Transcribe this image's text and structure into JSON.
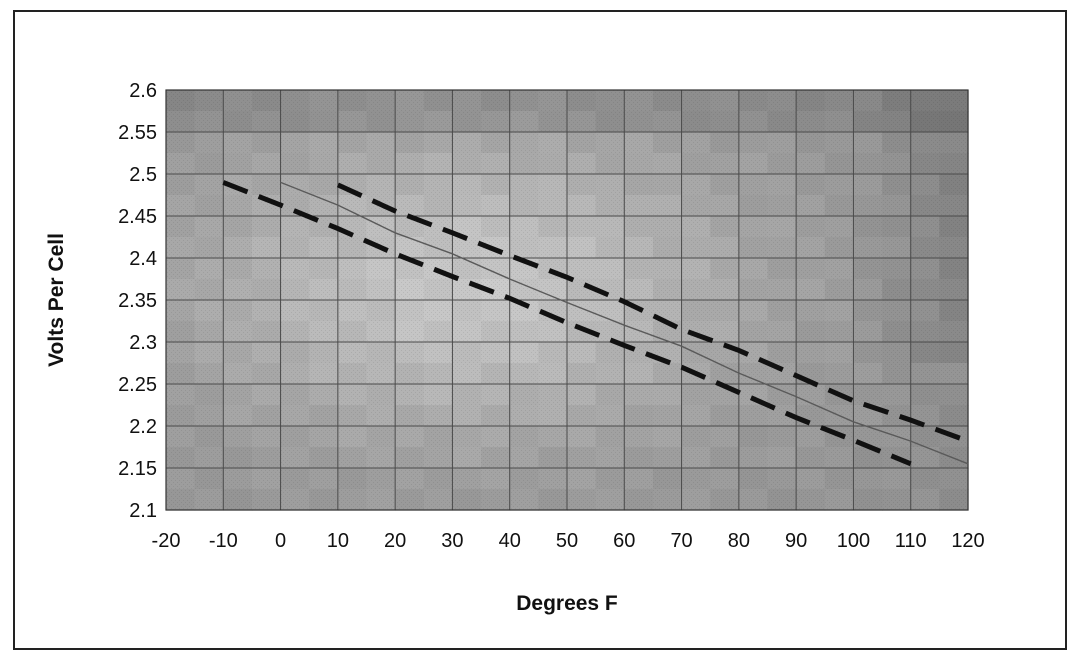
{
  "chart_data": {
    "type": "line",
    "title": "",
    "xlabel": "Degrees F",
    "ylabel": "Volts Per Cell",
    "xlim": [
      -20,
      120
    ],
    "ylim": [
      2.1,
      2.6
    ],
    "x_ticks": [
      "-20",
      "-10",
      "0",
      "10",
      "20",
      "30",
      "40",
      "50",
      "60",
      "70",
      "80",
      "90",
      "100",
      "110",
      "120"
    ],
    "y_ticks": [
      "2.1",
      "2.15",
      "2.2",
      "2.25",
      "2.3",
      "2.35",
      "2.4",
      "2.45",
      "2.5",
      "2.55",
      "2.6"
    ],
    "grid": true,
    "legend": "none",
    "series": [
      {
        "style": "solid",
        "color": "#5a5a5a",
        "points": [
          [
            0,
            2.49
          ],
          [
            10,
            2.463
          ],
          [
            20,
            2.43
          ],
          [
            30,
            2.405
          ],
          [
            40,
            2.375
          ],
          [
            50,
            2.347
          ],
          [
            60,
            2.32
          ],
          [
            70,
            2.295
          ],
          [
            80,
            2.263
          ],
          [
            90,
            2.235
          ],
          [
            100,
            2.205
          ],
          [
            110,
            2.182
          ],
          [
            120,
            2.155
          ]
        ]
      },
      {
        "style": "dashed",
        "color": "#111111",
        "points": [
          [
            10,
            2.487
          ],
          [
            20,
            2.456
          ],
          [
            30,
            2.43
          ],
          [
            40,
            2.403
          ],
          [
            50,
            2.377
          ],
          [
            60,
            2.348
          ],
          [
            70,
            2.315
          ],
          [
            80,
            2.29
          ],
          [
            90,
            2.26
          ],
          [
            100,
            2.23
          ],
          [
            110,
            2.207
          ],
          [
            120,
            2.182
          ]
        ]
      },
      {
        "style": "dashed",
        "color": "#111111",
        "points": [
          [
            -10,
            2.49
          ],
          [
            0,
            2.463
          ],
          [
            10,
            2.435
          ],
          [
            20,
            2.405
          ],
          [
            30,
            2.378
          ],
          [
            40,
            2.352
          ],
          [
            50,
            2.323
          ],
          [
            60,
            2.296
          ],
          [
            70,
            2.27
          ],
          [
            80,
            2.24
          ],
          [
            90,
            2.21
          ],
          [
            100,
            2.183
          ],
          [
            110,
            2.155
          ]
        ]
      }
    ]
  }
}
